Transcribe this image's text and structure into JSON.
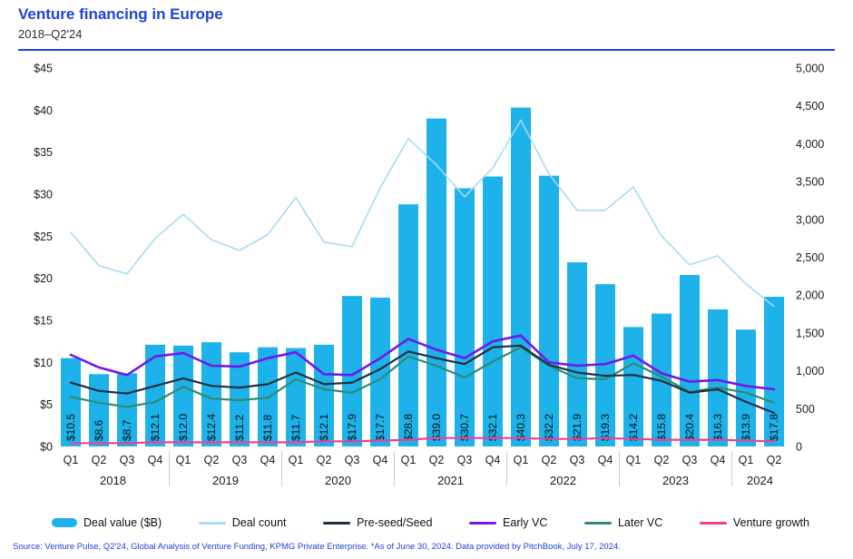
{
  "header": {
    "title": "Venture financing in Europe",
    "subtitle": "2018–Q2'24"
  },
  "colors": {
    "accent_blue": "#1e43dc",
    "deal_value": "#1db2e9",
    "deal_count": "#a6dcf5",
    "pre_seed_seed": "#1e2e3e",
    "early_vc": "#7318e8",
    "later_vc": "#2c8b72",
    "venture_growth": "#ef3f9a",
    "axis_text": "#1a1a1a",
    "separator": "#cccccc"
  },
  "legend": [
    {
      "key": "deal_value",
      "label": "Deal value ($B)",
      "swatch": "bar",
      "color": "#1db2e9"
    },
    {
      "key": "deal_count",
      "label": "Deal count",
      "swatch": "line",
      "color": "#a6dcf5"
    },
    {
      "key": "pre_seed_seed",
      "label": "Pre-seed/Seed",
      "swatch": "line",
      "color": "#1e2e3e"
    },
    {
      "key": "early_vc",
      "label": "Early VC",
      "swatch": "line",
      "color": "#7318e8"
    },
    {
      "key": "later_vc",
      "label": "Later VC",
      "swatch": "line",
      "color": "#2c8b72"
    },
    {
      "key": "venture_growth",
      "label": "Venture growth",
      "swatch": "line",
      "color": "#ef3f9a"
    }
  ],
  "footer": {
    "source": "Source: Venture Pulse, Q2'24, Global Analysis of Venture Funding, KPMG Private Enterprise. *As of June 30, 2024. Data provided by PitchBook, July 17, 2024."
  },
  "chart_data": {
    "type": "bar",
    "title": "Venture financing in Europe",
    "subtitle": "2018–Q2'24",
    "grid": false,
    "legend_position": "bottom",
    "quarters": [
      "Q1",
      "Q2",
      "Q3",
      "Q4",
      "Q1",
      "Q2",
      "Q3",
      "Q4",
      "Q1",
      "Q2",
      "Q3",
      "Q4",
      "Q1",
      "Q2",
      "Q3",
      "Q4",
      "Q1",
      "Q2",
      "Q3",
      "Q4",
      "Q1",
      "Q2",
      "Q3",
      "Q4",
      "Q1",
      "Q2"
    ],
    "year_groups": [
      {
        "year": "2018",
        "count": 4
      },
      {
        "year": "2019",
        "count": 4
      },
      {
        "year": "2020",
        "count": 4
      },
      {
        "year": "2021",
        "count": 4
      },
      {
        "year": "2022",
        "count": 4
      },
      {
        "year": "2023",
        "count": 4
      },
      {
        "year": "2024",
        "count": 2
      }
    ],
    "left_axis": {
      "min": 0,
      "max": 45,
      "ticks": [
        "$45",
        "$40",
        "$35",
        "$30",
        "$25",
        "$20",
        "$15",
        "$10",
        "$5",
        "$0"
      ]
    },
    "right_axis": {
      "min": 0,
      "max": 5000,
      "ticks": [
        "5,000",
        "4,500",
        "4,000",
        "3,500",
        "3,000",
        "2,500",
        "2,000",
        "1,500",
        "1,000",
        "500",
        "0"
      ]
    },
    "bar_labels": [
      "$10.5",
      "$8.6",
      "$8.7",
      "$12.1",
      "$12.0",
      "$12.4",
      "$11.2",
      "$11.8",
      "$11.7",
      "$12.1",
      "$17.9",
      "$17.7",
      "$28.8",
      "$39.0",
      "$30.7",
      "$32.1",
      "$40.3",
      "$32.2",
      "$21.9",
      "$19.3",
      "$14.2",
      "$15.8",
      "$20.4",
      "$16.3",
      "$13.9",
      "$17.8"
    ],
    "series": [
      {
        "key": "deal_value",
        "name": "Deal value ($B)",
        "type": "bar",
        "axis": "left",
        "color": "#1db2e9",
        "values": [
          10.5,
          8.6,
          8.7,
          12.1,
          12.0,
          12.4,
          11.2,
          11.8,
          11.7,
          12.1,
          17.9,
          17.7,
          28.8,
          39.0,
          30.7,
          32.1,
          40.3,
          32.2,
          21.9,
          19.3,
          14.2,
          15.8,
          20.4,
          16.3,
          13.9,
          17.8
        ]
      },
      {
        "key": "deal_count",
        "name": "Deal count",
        "type": "line",
        "axis": "right",
        "color": "#a6dcf5",
        "width": 1.6,
        "values": [
          2830,
          2390,
          2280,
          2750,
          3070,
          2730,
          2590,
          2800,
          3290,
          2700,
          2640,
          3420,
          4070,
          3720,
          3300,
          3680,
          4310,
          3600,
          3120,
          3120,
          3430,
          2780,
          2400,
          2520,
          2150,
          1850
        ]
      },
      {
        "key": "later_vc",
        "name": "Later VC",
        "type": "line",
        "axis": "left",
        "color": "#2c8b72",
        "width": 2.2,
        "values": [
          5.9,
          5.2,
          4.7,
          5.3,
          7.1,
          5.7,
          5.5,
          5.8,
          8.0,
          6.8,
          6.4,
          8.0,
          10.7,
          9.6,
          8.2,
          10.1,
          11.8,
          9.6,
          8.1,
          8.0,
          9.9,
          8.3,
          6.5,
          7.0,
          6.4,
          5.2
        ]
      },
      {
        "key": "pre_seed_seed",
        "name": "Pre-seed/Seed",
        "type": "line",
        "axis": "left",
        "color": "#1e2e3e",
        "width": 2.2,
        "values": [
          7.6,
          6.6,
          6.3,
          7.2,
          8.1,
          7.2,
          7.0,
          7.4,
          8.8,
          7.4,
          7.6,
          9.2,
          11.3,
          10.5,
          9.8,
          11.8,
          12.0,
          9.7,
          8.8,
          8.4,
          8.5,
          7.8,
          6.4,
          6.8,
          5.3,
          4.0
        ]
      },
      {
        "key": "early_vc",
        "name": "Early VC",
        "type": "line",
        "axis": "left",
        "color": "#7318e8",
        "width": 2.6,
        "values": [
          10.9,
          9.4,
          8.5,
          10.7,
          11.1,
          9.6,
          9.5,
          10.5,
          11.2,
          8.6,
          8.5,
          10.5,
          12.8,
          11.5,
          10.5,
          12.5,
          13.2,
          10.0,
          9.6,
          9.8,
          10.8,
          8.7,
          7.7,
          7.9,
          7.2,
          6.8
        ]
      },
      {
        "key": "venture_growth",
        "name": "Venture growth",
        "type": "line",
        "axis": "left",
        "color": "#ef3f9a",
        "width": 2.2,
        "values": [
          0.4,
          0.4,
          0.4,
          0.5,
          0.5,
          0.5,
          0.5,
          0.5,
          0.5,
          0.6,
          0.6,
          0.7,
          0.8,
          1.0,
          1.0,
          1.0,
          1.0,
          0.9,
          0.9,
          1.0,
          0.9,
          0.8,
          0.8,
          0.8,
          0.7,
          0.6
        ]
      }
    ]
  }
}
